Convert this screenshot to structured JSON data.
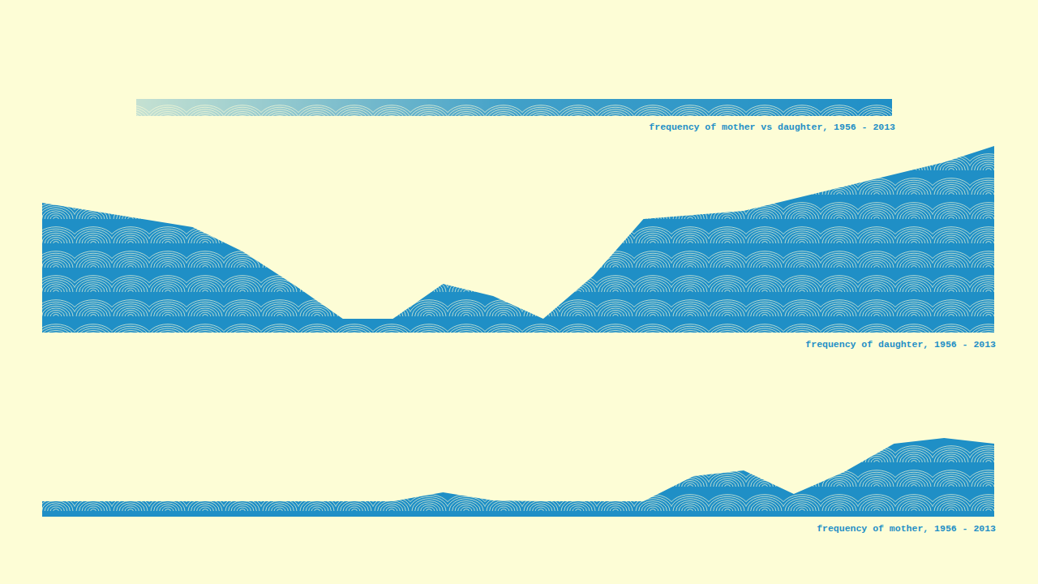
{
  "chart_data": [
    {
      "type": "area",
      "title": "frequency of mother vs daughter, 1956 - 2013",
      "x": [
        1956,
        1959,
        1962,
        1965,
        1968,
        1971,
        1974,
        1977,
        1980,
        1983,
        1986,
        1989,
        1992,
        1995,
        1998,
        2001,
        2004,
        2007,
        2010,
        2013
      ],
      "values": [
        21,
        21,
        21,
        21,
        21,
        21,
        21,
        21,
        21,
        21,
        21,
        21,
        21,
        21,
        21,
        21,
        21,
        21,
        21,
        21
      ],
      "xlim": [
        1956,
        2013
      ],
      "ylim": [
        0,
        21
      ],
      "color": "#1f8fc6",
      "tick_labels": false
    },
    {
      "type": "area",
      "title": "frequency of daughter, 1956 - 2013",
      "x": [
        1956,
        1959,
        1962,
        1965,
        1968,
        1971,
        1974,
        1977,
        1980,
        1983,
        1986,
        1989,
        1992,
        1995,
        1998,
        2001,
        2004,
        2007,
        2010,
        2013
      ],
      "values": [
        160,
        150,
        140,
        130,
        100,
        60,
        17,
        17,
        60,
        45,
        17,
        70,
        140,
        145,
        150,
        165,
        180,
        195,
        210,
        230
      ],
      "xlim": [
        1956,
        2013
      ],
      "ylim": [
        0,
        250
      ],
      "color": "#1f8fc6",
      "tick_labels": false
    },
    {
      "type": "area",
      "title": "frequency of mother, 1956 - 2013",
      "x": [
        1956,
        1959,
        1962,
        1965,
        1968,
        1971,
        1974,
        1977,
        1980,
        1983,
        1986,
        1989,
        1992,
        1995,
        1998,
        2001,
        2004,
        2007,
        2010,
        2013
      ],
      "values": [
        19,
        19,
        19,
        19,
        19,
        19,
        19,
        19,
        30,
        20,
        19,
        19,
        19,
        50,
        57,
        28,
        55,
        90,
        97,
        90
      ],
      "xlim": [
        1956,
        2013
      ],
      "ylim": [
        0,
        100
      ],
      "color": "#1f8fc6",
      "tick_labels": false
    }
  ]
}
